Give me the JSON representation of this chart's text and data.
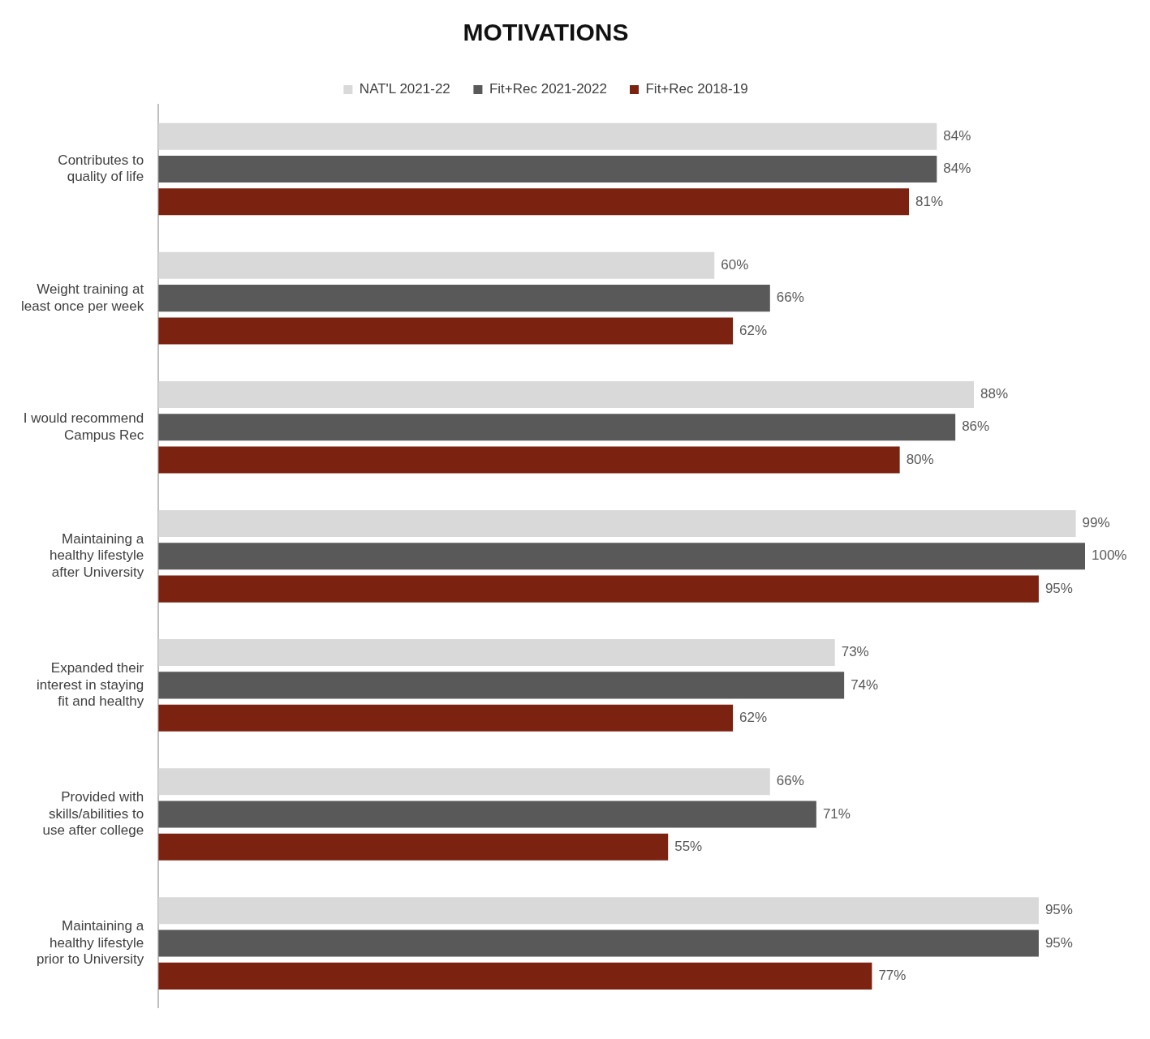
{
  "chart_data": {
    "type": "bar",
    "orientation": "horizontal",
    "title": "MOTIVATIONS",
    "categories": [
      "Contributes to quality of life",
      "Weight training at least once per week",
      "I would recommend Campus Rec",
      "Maintaining a healthy lifestyle after University",
      "Expanded their interest in staying fit and healthy",
      "Provided with skills/abilities to use after college",
      "Maintaining a healthy lifestyle prior to University"
    ],
    "series": [
      {
        "name": "NAT'L 2021-22",
        "color": "#d9d9d9",
        "values": [
          84,
          60,
          88,
          99,
          73,
          66,
          95
        ],
        "value_labels": [
          "84%",
          "60%",
          "88%",
          "99%",
          "73%",
          "66%",
          "95%"
        ]
      },
      {
        "name": "Fit+Rec 2021-2022",
        "color": "#595959",
        "values": [
          84,
          66,
          86,
          100,
          74,
          71,
          95
        ],
        "value_labels": [
          "84%",
          "66%",
          "86%",
          "100%",
          "74%",
          "71%",
          "95%"
        ]
      },
      {
        "name": "Fit+Rec 2018-19",
        "color": "#7b2210",
        "values": [
          81,
          62,
          80,
          95,
          62,
          55,
          77
        ],
        "value_labels": [
          "81%",
          "62%",
          "80%",
          "95%",
          "62%",
          "55%",
          "77%"
        ]
      }
    ],
    "xlim": [
      0,
      100
    ],
    "tick_labels": "y",
    "legend": "top"
  }
}
